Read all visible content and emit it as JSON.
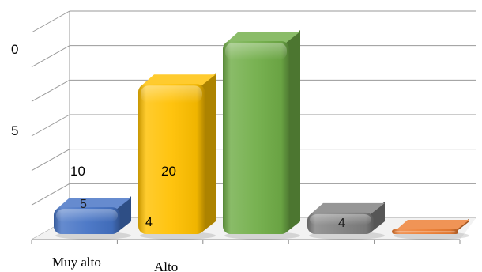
{
  "chart_data": {
    "type": "bar",
    "title": "",
    "xlabel": "",
    "ylabel": "",
    "categories": [
      "Muy alto",
      "Alto",
      "",
      "",
      ""
    ],
    "values": [
      5,
      28,
      36,
      4,
      0.5
    ],
    "data_labels": [
      "5",
      "",
      "",
      "4",
      ""
    ],
    "bar_colors": [
      "#4472c4",
      "#ffc000",
      "#70ad47",
      "#7f7f7f",
      "#ed7d31"
    ],
    "y_tick_labels": [
      "0",
      "5"
    ],
    "floating_labels": [
      "10",
      "20",
      "4"
    ],
    "grid": true,
    "style": "3d-rounded"
  }
}
